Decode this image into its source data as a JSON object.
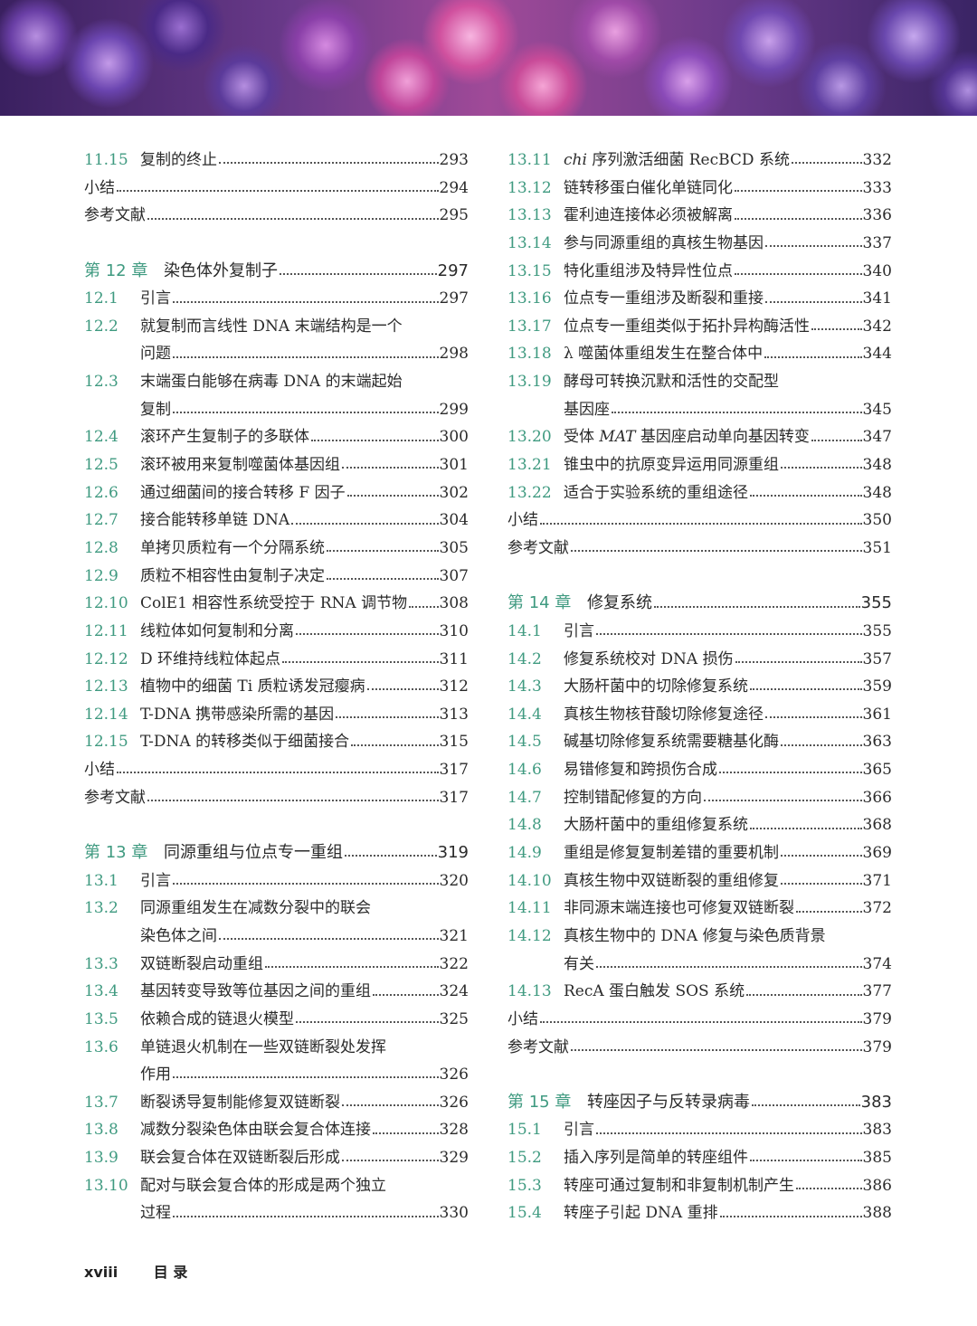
{
  "banner": {
    "image": "purple-pink-cocci-micrograph"
  },
  "colors": {
    "section_number": "#3f9a80",
    "text": "#2a2a2a"
  },
  "columns": [
    {
      "entries": [
        {
          "num": "11.15",
          "lines": [
            "复制的终止"
          ],
          "page": "293"
        },
        {
          "num": "",
          "lines": [
            "小结"
          ],
          "page": "294",
          "plain": true
        },
        {
          "num": "",
          "lines": [
            "参考文献"
          ],
          "page": "295",
          "plain": true
        },
        {
          "spacer": true
        },
        {
          "num": "第 12 章",
          "lines": [
            "染色体外复制子"
          ],
          "page": "297",
          "chapter": true
        },
        {
          "num": "12.1",
          "lines": [
            "引言"
          ],
          "page": "297"
        },
        {
          "num": "12.2",
          "lines": [
            "就复制而言线性 DNA 末端结构是一个",
            "问题"
          ],
          "page": "298"
        },
        {
          "num": "12.3",
          "lines": [
            "末端蛋白能够在病毒 DNA 的末端起始",
            "复制"
          ],
          "page": "299"
        },
        {
          "num": "12.4",
          "lines": [
            "滚环产生复制子的多联体"
          ],
          "page": "300"
        },
        {
          "num": "12.5",
          "lines": [
            "滚环被用来复制噬菌体基因组"
          ],
          "page": "301"
        },
        {
          "num": "12.6",
          "lines": [
            "通过细菌间的接合转移 F 因子"
          ],
          "page": "302"
        },
        {
          "num": "12.7",
          "lines": [
            "接合能转移单链 DNA"
          ],
          "page": "304"
        },
        {
          "num": "12.8",
          "lines": [
            "单拷贝质粒有一个分隔系统"
          ],
          "page": "305"
        },
        {
          "num": "12.9",
          "lines": [
            "质粒不相容性由复制子决定"
          ],
          "page": "307"
        },
        {
          "num": "12.10",
          "lines": [
            "ColE1 相容性系统受控于 RNA 调节物"
          ],
          "page": "308"
        },
        {
          "num": "12.11",
          "lines": [
            "线粒体如何复制和分离"
          ],
          "page": "310"
        },
        {
          "num": "12.12",
          "lines": [
            "D 环维持线粒体起点"
          ],
          "page": "311"
        },
        {
          "num": "12.13",
          "lines": [
            "植物中的细菌 Ti 质粒诱发冠瘿病"
          ],
          "page": "312"
        },
        {
          "num": "12.14",
          "lines": [
            "T-DNA 携带感染所需的基因"
          ],
          "page": "313"
        },
        {
          "num": "12.15",
          "lines": [
            "T-DNA 的转移类似于细菌接合"
          ],
          "page": "315"
        },
        {
          "num": "",
          "lines": [
            "小结"
          ],
          "page": "317",
          "plain": true
        },
        {
          "num": "",
          "lines": [
            "参考文献"
          ],
          "page": "317",
          "plain": true
        },
        {
          "spacer": true
        },
        {
          "num": "第 13 章",
          "lines": [
            "同源重组与位点专一重组"
          ],
          "page": "319",
          "chapter": true
        },
        {
          "num": "13.1",
          "lines": [
            "引言"
          ],
          "page": "320"
        },
        {
          "num": "13.2",
          "lines": [
            "同源重组发生在减数分裂中的联会",
            "染色体之间"
          ],
          "page": "321"
        },
        {
          "num": "13.3",
          "lines": [
            "双链断裂启动重组"
          ],
          "page": "322"
        },
        {
          "num": "13.4",
          "lines": [
            "基因转变导致等位基因之间的重组"
          ],
          "page": "324"
        },
        {
          "num": "13.5",
          "lines": [
            "依赖合成的链退火模型"
          ],
          "page": "325"
        },
        {
          "num": "13.6",
          "lines": [
            "单链退火机制在一些双链断裂处发挥",
            "作用"
          ],
          "page": "326"
        },
        {
          "num": "13.7",
          "lines": [
            "断裂诱导复制能修复双链断裂"
          ],
          "page": "326"
        },
        {
          "num": "13.8",
          "lines": [
            "减数分裂染色体由联会复合体连接"
          ],
          "page": "328"
        },
        {
          "num": "13.9",
          "lines": [
            "联会复合体在双链断裂后形成"
          ],
          "page": "329"
        },
        {
          "num": "13.10",
          "lines": [
            "配对与联会复合体的形成是两个独立",
            "过程"
          ],
          "page": "330"
        }
      ]
    },
    {
      "entries": [
        {
          "num": "13.11",
          "lines": [
            [
              {
                "text": "chi",
                "italic": true
              },
              {
                "text": " 序列激活细菌 RecBCD 系统 "
              }
            ]
          ],
          "page": "332"
        },
        {
          "num": "13.12",
          "lines": [
            "链转移蛋白催化单链同化"
          ],
          "page": "333"
        },
        {
          "num": "13.13",
          "lines": [
            "霍利迪连接体必须被解离"
          ],
          "page": "336"
        },
        {
          "num": "13.14",
          "lines": [
            "参与同源重组的真核生物基因"
          ],
          "page": "337"
        },
        {
          "num": "13.15",
          "lines": [
            "特化重组涉及特异性位点"
          ],
          "page": "340"
        },
        {
          "num": "13.16",
          "lines": [
            "位点专一重组涉及断裂和重接"
          ],
          "page": "341"
        },
        {
          "num": "13.17",
          "lines": [
            "位点专一重组类似于拓扑异构酶活性"
          ],
          "page": "342"
        },
        {
          "num": "13.18",
          "lines": [
            "λ 噬菌体重组发生在整合体中"
          ],
          "page": "344"
        },
        {
          "num": "13.19",
          "lines": [
            "酵母可转换沉默和活性的交配型",
            "基因座"
          ],
          "page": "345"
        },
        {
          "num": "13.20",
          "lines": [
            [
              {
                "text": "受体 "
              },
              {
                "text": "MAT",
                "italic": true
              },
              {
                "text": " 基因座启动单向基因转变"
              }
            ]
          ],
          "page": "347"
        },
        {
          "num": "13.21",
          "lines": [
            "锥虫中的抗原变异运用同源重组"
          ],
          "page": "348"
        },
        {
          "num": "13.22",
          "lines": [
            "适合于实验系统的重组途径"
          ],
          "page": "348"
        },
        {
          "num": "",
          "lines": [
            "小结"
          ],
          "page": "350",
          "plain": true
        },
        {
          "num": "",
          "lines": [
            "参考文献"
          ],
          "page": "351",
          "plain": true
        },
        {
          "spacer": true
        },
        {
          "num": "第 14 章",
          "lines": [
            "修复系统"
          ],
          "page": "355",
          "chapter": true
        },
        {
          "num": "14.1",
          "lines": [
            "引言"
          ],
          "page": "355"
        },
        {
          "num": "14.2",
          "lines": [
            "修复系统校对 DNA 损伤"
          ],
          "page": "357"
        },
        {
          "num": "14.3",
          "lines": [
            "大肠杆菌中的切除修复系统"
          ],
          "page": "359"
        },
        {
          "num": "14.4",
          "lines": [
            "真核生物核苷酸切除修复途径"
          ],
          "page": "361"
        },
        {
          "num": "14.5",
          "lines": [
            "碱基切除修复系统需要糖基化酶"
          ],
          "page": "363"
        },
        {
          "num": "14.6",
          "lines": [
            "易错修复和跨损伤合成"
          ],
          "page": "365"
        },
        {
          "num": "14.7",
          "lines": [
            "控制错配修复的方向"
          ],
          "page": "366"
        },
        {
          "num": "14.8",
          "lines": [
            "大肠杆菌中的重组修复系统"
          ],
          "page": "368"
        },
        {
          "num": "14.9",
          "lines": [
            "重组是修复复制差错的重要机制"
          ],
          "page": "369"
        },
        {
          "num": "14.10",
          "lines": [
            "真核生物中双链断裂的重组修复"
          ],
          "page": "371"
        },
        {
          "num": "14.11",
          "lines": [
            "非同源末端连接也可修复双链断裂"
          ],
          "page": "372"
        },
        {
          "num": "14.12",
          "lines": [
            "真核生物中的 DNA 修复与染色质背景",
            "有关"
          ],
          "page": "374"
        },
        {
          "num": "14.13",
          "lines": [
            "RecA 蛋白触发 SOS 系统"
          ],
          "page": "377"
        },
        {
          "num": "",
          "lines": [
            "小结"
          ],
          "page": "379",
          "plain": true
        },
        {
          "num": "",
          "lines": [
            "参考文献"
          ],
          "page": "379",
          "plain": true
        },
        {
          "spacer": true
        },
        {
          "num": "第 15 章",
          "lines": [
            "转座因子与反转录病毒"
          ],
          "page": "383",
          "chapter": true
        },
        {
          "num": "15.1",
          "lines": [
            "引言"
          ],
          "page": "383"
        },
        {
          "num": "15.2",
          "lines": [
            "插入序列是简单的转座组件"
          ],
          "page": "385"
        },
        {
          "num": "15.3",
          "lines": [
            "转座可通过复制和非复制机制产生"
          ],
          "page": "386"
        },
        {
          "num": "15.4",
          "lines": [
            "转座子引起 DNA 重排"
          ],
          "page": "388"
        }
      ]
    }
  ],
  "footer": {
    "page_number": "xviii",
    "section": "目 录"
  }
}
